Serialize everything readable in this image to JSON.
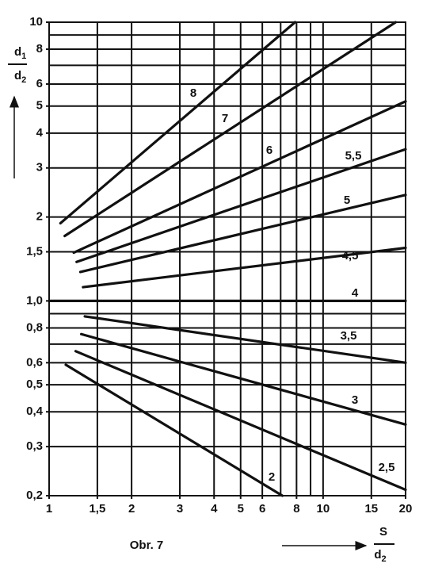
{
  "chart_data": {
    "type": "line",
    "xscale": "log",
    "yscale": "log",
    "grid": true,
    "xlim": [
      1,
      20
    ],
    "ylim": [
      0.2,
      10
    ],
    "xticks": [
      1,
      {
        "value": 1.5,
        "label": "1,5"
      },
      2,
      3,
      4,
      5,
      6,
      8,
      10,
      15,
      20
    ],
    "xgrid": [
      1.5,
      2,
      3,
      4,
      5,
      6,
      7,
      8,
      9,
      10,
      15,
      20
    ],
    "yticks": [
      10,
      8,
      6,
      5,
      4,
      3,
      2,
      {
        "value": 1.5,
        "label": "1,5"
      },
      {
        "value": 1,
        "label": "1,0"
      },
      {
        "value": 0.8,
        "label": "0,8"
      },
      {
        "value": 0.6,
        "label": "0,6"
      },
      {
        "value": 0.5,
        "label": "0,5"
      },
      {
        "value": 0.4,
        "label": "0,4"
      },
      {
        "value": 0.3,
        "label": "0,3"
      },
      {
        "value": 0.2,
        "label": "0,2"
      }
    ],
    "ygrid": [
      9,
      8,
      7,
      6,
      5,
      4,
      3,
      2,
      1.5,
      0.9,
      0.8,
      0.7,
      0.6,
      0.5,
      0.4,
      0.3
    ],
    "ylabel": {
      "numerator": [
        "d",
        "1"
      ],
      "denominator": [
        "d",
        "2"
      ]
    },
    "xlabel": {
      "numerator": "S",
      "denominator": [
        "d",
        "2"
      ]
    },
    "caption": "Obr. 7",
    "color": "#111111",
    "series": [
      {
        "name": "8",
        "x": [
          1.1,
          7.9
        ],
        "values": [
          1.9,
          10
        ]
      },
      {
        "name": "7",
        "x": [
          1.14,
          18.4
        ],
        "values": [
          1.71,
          10
        ]
      },
      {
        "name": "6",
        "x": [
          1.23,
          20
        ],
        "values": [
          1.49,
          5.2
        ]
      },
      {
        "name": "5,5",
        "x": [
          1.26,
          20
        ],
        "values": [
          1.38,
          3.5
        ]
      },
      {
        "name": "5",
        "x": [
          1.3,
          20
        ],
        "values": [
          1.27,
          2.4
        ]
      },
      {
        "name": "4,5",
        "x": [
          1.33,
          20
        ],
        "values": [
          1.12,
          1.55
        ]
      },
      {
        "name": "4",
        "x": [
          1,
          20
        ],
        "values": [
          1,
          1
        ]
      },
      {
        "name": "3,5",
        "x": [
          1.35,
          20
        ],
        "values": [
          0.88,
          0.6
        ]
      },
      {
        "name": "3",
        "x": [
          1.31,
          20
        ],
        "values": [
          0.76,
          0.36
        ]
      },
      {
        "name": "2,5",
        "x": [
          1.25,
          20
        ],
        "values": [
          0.66,
          0.21
        ]
      },
      {
        "name": "2",
        "x": [
          1.15,
          7.1
        ],
        "values": [
          0.59,
          0.2
        ]
      }
    ]
  }
}
